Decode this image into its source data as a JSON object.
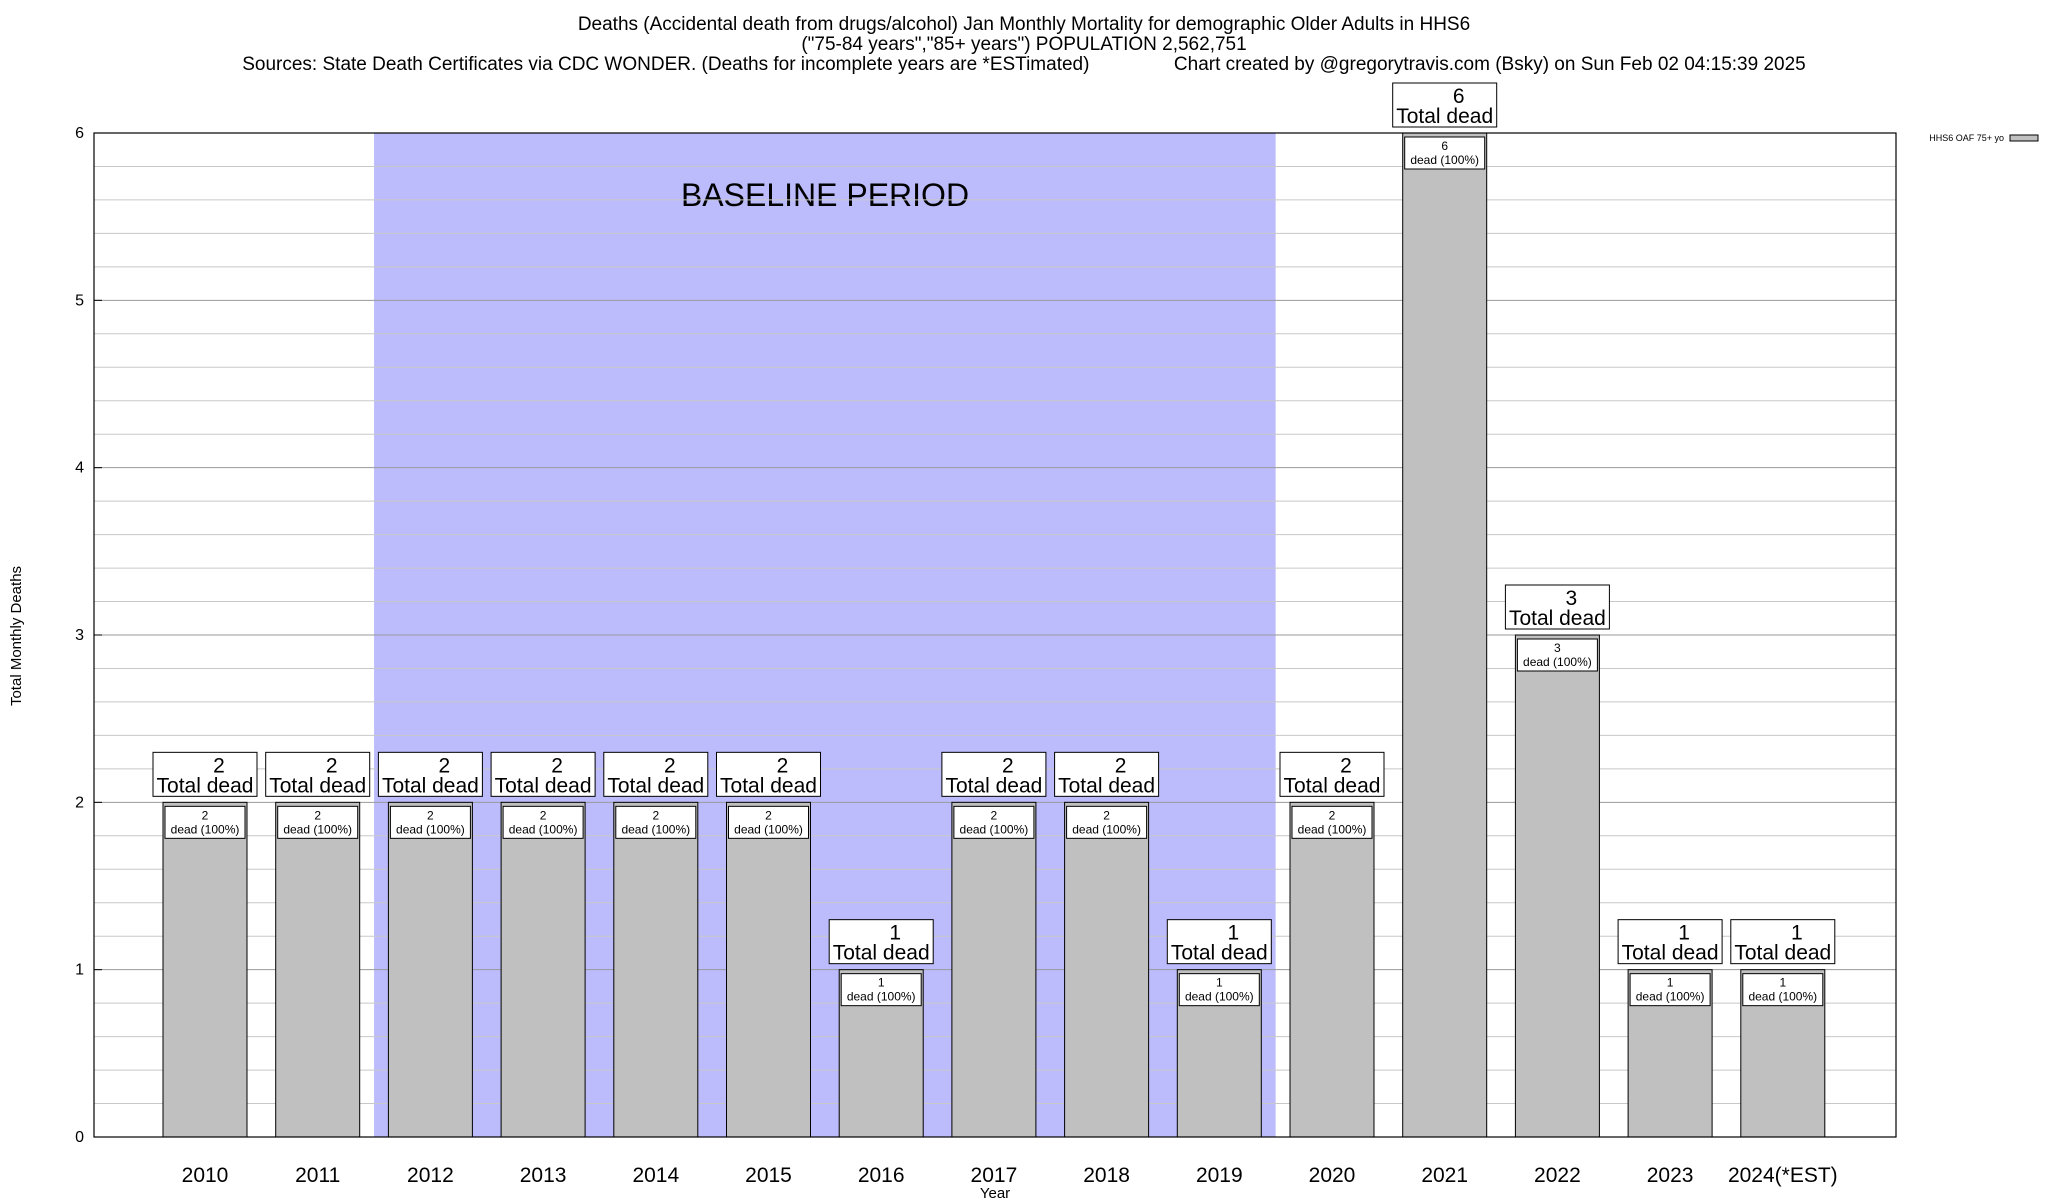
{
  "header": {
    "line1": "Deaths (Accidental death from drugs/alcohol) Jan Monthly Mortality for demographic Older Adults in HHS6",
    "line2": "(\"75-84 years\",\"85+ years\") POPULATION 2,562,751",
    "line3_left": "Sources: State Death Certificates via CDC WONDER. (Deaths for incomplete years are *ESTimated)",
    "line3_right": "Chart created by @gregorytravis.com (Bsky) on Sun Feb 02 04:15:39 2025"
  },
  "chart_data": {
    "type": "bar",
    "title": "Deaths (Accidental death from drugs/alcohol) Jan Monthly Mortality for demographic Older Adults in HHS6",
    "xlabel": "Year",
    "ylabel": "Total Monthly Deaths",
    "ylim": [
      0,
      6
    ],
    "yticks": [
      0,
      1,
      2,
      3,
      4,
      5,
      6
    ],
    "grid": true,
    "categories": [
      "2010",
      "2011",
      "2012",
      "2013",
      "2014",
      "2015",
      "2016",
      "2017",
      "2018",
      "2019",
      "2020",
      "2021",
      "2022",
      "2023",
      "2024(*EST)"
    ],
    "series": [
      {
        "name": "HHS6 OAF 75+ yo",
        "values": [
          2,
          2,
          2,
          2,
          2,
          2,
          1,
          2,
          2,
          1,
          2,
          6,
          3,
          1,
          1
        ]
      }
    ],
    "total_label": "Total dead",
    "inner_label_suffix": "dead (100%)",
    "baseline": {
      "label": "BASELINE PERIOD",
      "from": "2012",
      "to": "2019"
    },
    "legend_position": "top-right",
    "colors": {
      "bar": "#c0c0c0",
      "baseline": "#bcbcfc",
      "grid": "#c8c8c8"
    }
  }
}
